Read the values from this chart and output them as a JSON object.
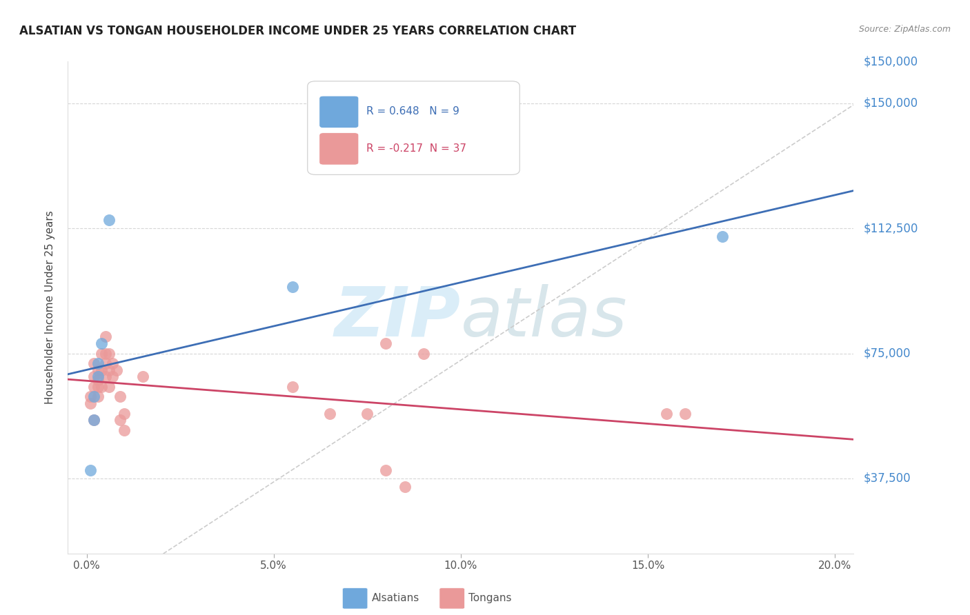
{
  "title": "ALSATIAN VS TONGAN HOUSEHOLDER INCOME UNDER 25 YEARS CORRELATION CHART",
  "source": "Source: ZipAtlas.com",
  "ylabel": "Householder Income Under 25 years",
  "xlabel_ticks": [
    "0.0%",
    "5.0%",
    "10.0%",
    "15.0%",
    "20.0%"
  ],
  "xlabel_vals": [
    0.0,
    0.05,
    0.1,
    0.15,
    0.2
  ],
  "ytick_labels": [
    "$37,500",
    "$75,000",
    "$112,500",
    "$150,000"
  ],
  "ytick_vals": [
    37500,
    75000,
    112500,
    150000
  ],
  "xmin": -0.005,
  "xmax": 0.205,
  "ymin": 15000,
  "ymax": 162500,
  "alsatian_R": 0.648,
  "alsatian_N": 9,
  "tongan_R": -0.217,
  "tongan_N": 37,
  "alsatian_color": "#6fa8dc",
  "tongan_color": "#ea9999",
  "alsatian_line_color": "#3d6eb5",
  "tongan_line_color": "#cc4466",
  "diagonal_color": "#cccccc",
  "alsatian_x": [
    0.001,
    0.002,
    0.002,
    0.003,
    0.003,
    0.004,
    0.006,
    0.055,
    0.17
  ],
  "alsatian_y": [
    40000,
    55000,
    62000,
    68000,
    72000,
    78000,
    115000,
    95000,
    110000
  ],
  "tongan_x": [
    0.001,
    0.001,
    0.002,
    0.002,
    0.002,
    0.002,
    0.003,
    0.003,
    0.003,
    0.003,
    0.004,
    0.004,
    0.004,
    0.005,
    0.005,
    0.005,
    0.005,
    0.006,
    0.006,
    0.006,
    0.007,
    0.007,
    0.008,
    0.009,
    0.009,
    0.01,
    0.01,
    0.015,
    0.055,
    0.065,
    0.075,
    0.08,
    0.085,
    0.155,
    0.16,
    0.08,
    0.09
  ],
  "tongan_y": [
    60000,
    62000,
    55000,
    65000,
    68000,
    72000,
    62000,
    65000,
    67000,
    70000,
    65000,
    70000,
    75000,
    68000,
    72000,
    75000,
    80000,
    65000,
    70000,
    75000,
    68000,
    72000,
    70000,
    62000,
    55000,
    57000,
    52000,
    68000,
    65000,
    57000,
    57000,
    40000,
    35000,
    57000,
    57000,
    78000,
    75000
  ],
  "watermark_zip": "ZIP",
  "watermark_atlas": "atlas",
  "background_color": "#ffffff",
  "grid_color": "#cccccc"
}
